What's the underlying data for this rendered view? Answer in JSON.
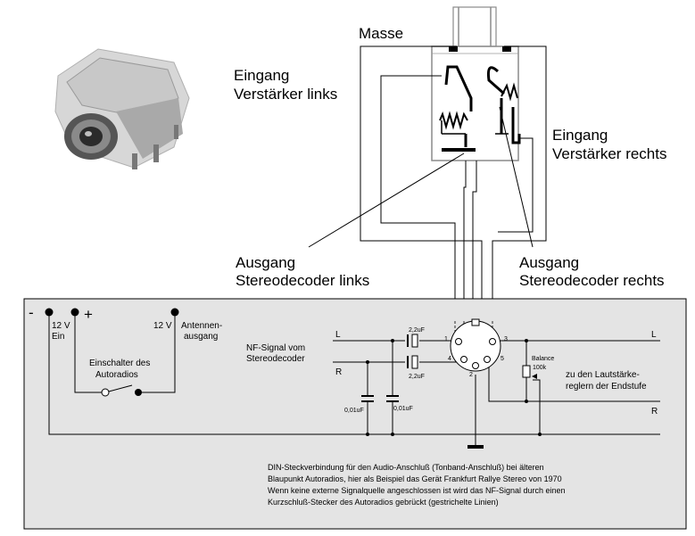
{
  "jack_labels": {
    "masse": "Masse",
    "input_left_1": "Eingang",
    "input_left_2": "Verstärker links",
    "input_right_1": "Eingang",
    "input_right_2": "Verstärker rechts",
    "output_left_1": "Ausgang",
    "output_left_2": "Stereodecoder links",
    "output_right_1": "Ausgang",
    "output_right_2": "Stereodecoder rechts"
  },
  "circuit": {
    "minus": "-",
    "plus": "+",
    "v12_ein_1": "12 V",
    "v12_ein_2": "Ein",
    "v12_ant": "12 V",
    "antennen_1": "Antennen-",
    "antennen_2": "ausgang",
    "switch_1": "Einschalter des",
    "switch_2": "Autoradios",
    "nf_1": "NF-Signal vom",
    "nf_2": "Stereodecoder",
    "l_in": "L",
    "r_in": "R",
    "cap_top": "2,2uF",
    "cap_bot": "2,2uF",
    "cap_small_1": "0,01uF",
    "cap_small_2": "0,01uF",
    "pin1": "1",
    "pin2": "2",
    "pin3": "3",
    "pin4": "4",
    "pin5": "5",
    "balance_1": "Balance",
    "balance_2": "100k",
    "laut_1": "zu den Lautstärke-",
    "laut_2": "reglern der Endstufe",
    "l_out": "L",
    "r_out": "R",
    "desc_1": "DIN-Steckverbindung für den Audio-Anschluß (Tonband-Anschluß) bei älteren",
    "desc_2": "Blaupunkt Autoradios, hier als Beispiel das Gerät Frankfurt Rallye Stereo von 1970",
    "desc_3": "Wenn keine externe Signalquelle angeschlossen ist wird das NF-Signal durch einen",
    "desc_4": "Kurzschluß-Stecker des Autoradios gebrückt (gestrichelte Linien)"
  }
}
